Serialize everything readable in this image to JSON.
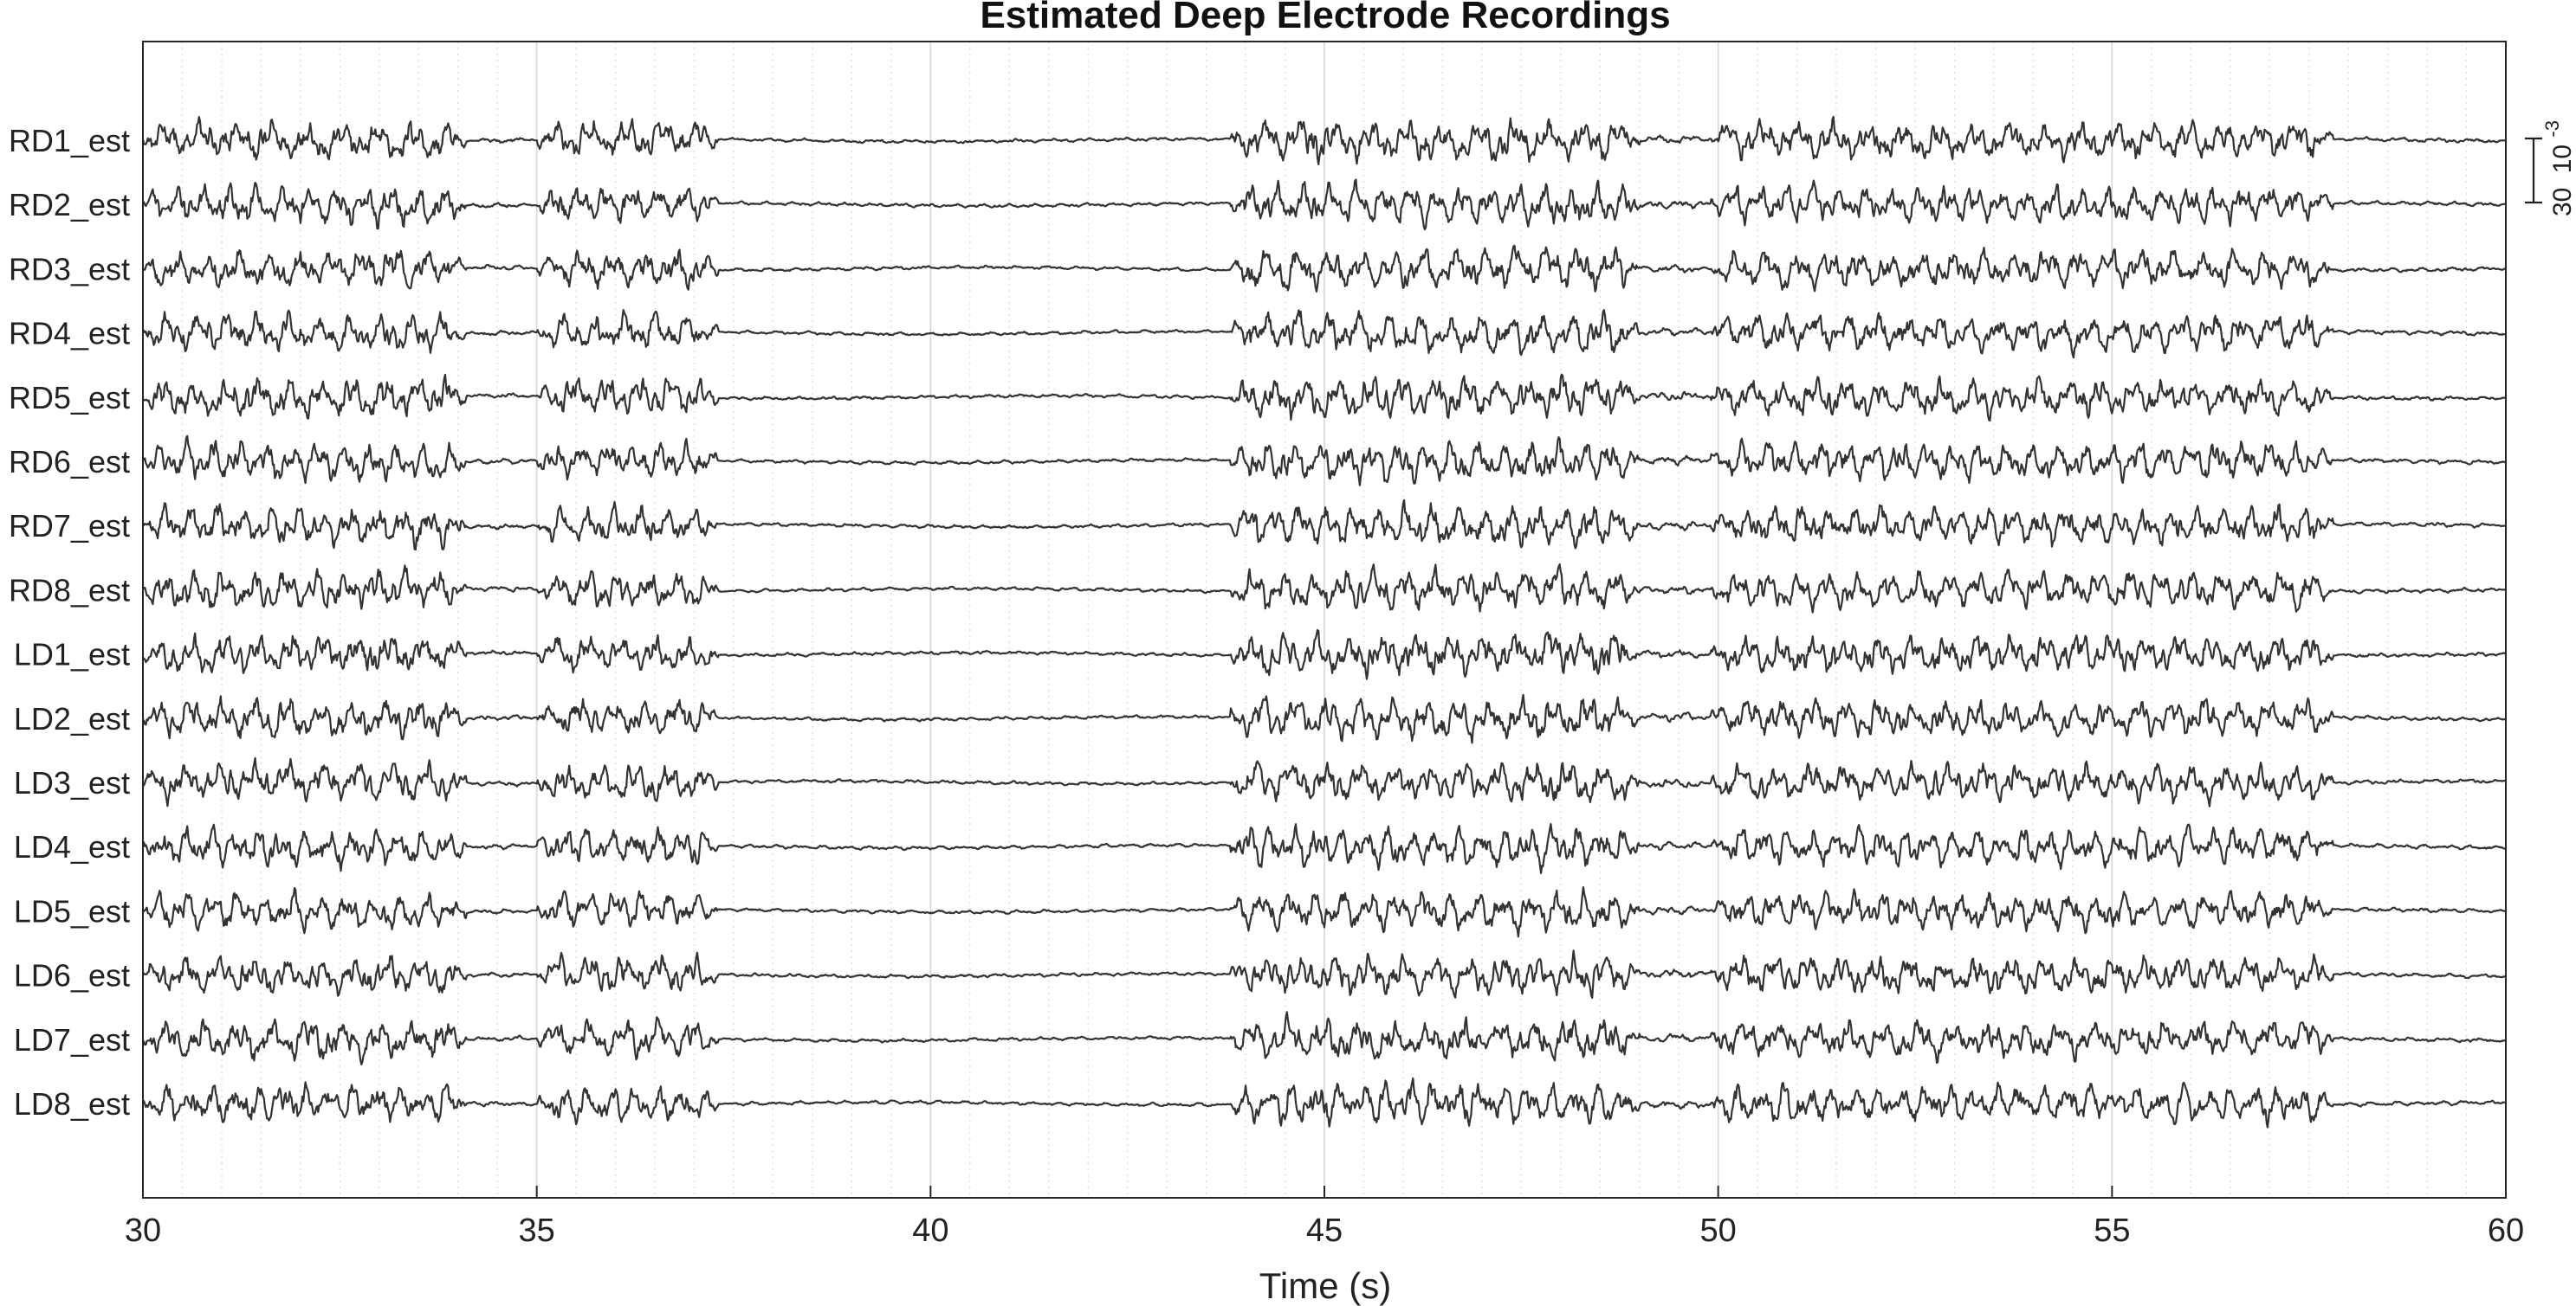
{
  "chart_data": {
    "type": "line",
    "title": "Estimated Deep Electrode Recordings",
    "xlabel": "Time (s)",
    "ylabel": "",
    "xlim": [
      30,
      60
    ],
    "xticks": [
      "30",
      "35",
      "40",
      "45",
      "50",
      "55",
      "60"
    ],
    "minor_grid_step_s": 0.5,
    "grid": true,
    "scale_bar": {
      "value": "30",
      "exponent_base": "10",
      "exponent": "-3"
    },
    "channels": [
      "RD1_est",
      "RD2_est",
      "RD3_est",
      "RD4_est",
      "RD5_est",
      "RD6_est",
      "RD7_est",
      "RD8_est",
      "LD1_est",
      "LD2_est",
      "LD3_est",
      "LD4_est",
      "LD5_est",
      "LD6_est",
      "LD7_est",
      "LD8_est"
    ],
    "segments": [
      {
        "start": 30.0,
        "end": 34.1,
        "amplitude": 0.9,
        "state": "burst"
      },
      {
        "start": 34.1,
        "end": 35.0,
        "amplitude": 0.12,
        "state": "quiet"
      },
      {
        "start": 35.0,
        "end": 37.3,
        "amplitude": 0.85,
        "state": "burst"
      },
      {
        "start": 37.3,
        "end": 43.8,
        "amplitude": 0.08,
        "state": "quiet"
      },
      {
        "start": 43.8,
        "end": 49.0,
        "amplitude": 0.95,
        "state": "burst"
      },
      {
        "start": 49.0,
        "end": 49.9,
        "amplitude": 0.2,
        "state": "quiet"
      },
      {
        "start": 49.9,
        "end": 57.8,
        "amplitude": 0.85,
        "state": "burst"
      },
      {
        "start": 57.8,
        "end": 60.0,
        "amplitude": 0.1,
        "state": "quiet"
      }
    ],
    "colors": {
      "trace": "#333333",
      "grid": "#d6d6d6",
      "frame": "#262626",
      "background": "#ffffff"
    }
  }
}
